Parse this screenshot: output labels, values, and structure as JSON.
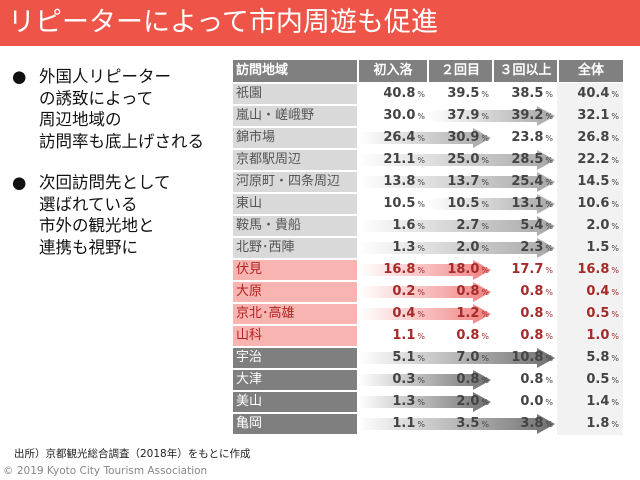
{
  "title": "リピーターによって市内周遊も促進",
  "bullets": [
    {
      "symbol": "●",
      "text": "外国人リピーター\nの誘致によって\n周辺地域の\n訪問率も底上げされる"
    },
    {
      "symbol": "●",
      "text": "次回訪問先として\n選ばれている\n市外の観光地と\n連携も視野に"
    }
  ],
  "table": {
    "headers": [
      "訪問地域",
      "初入洛",
      "２回目",
      "３回以上",
      "全体"
    ],
    "unit": "%",
    "rows": [
      {
        "name": "祇園",
        "style": "g",
        "values": [
          "40.8",
          "39.5",
          "38.5",
          "40.4"
        ],
        "arrow": null
      },
      {
        "name": "嵐山・嵯峨野",
        "style": "g",
        "values": [
          "30.0",
          "37.9",
          "39.2",
          "32.1"
        ],
        "arrow": [
          1,
          2
        ]
      },
      {
        "name": "錦市場",
        "style": "g",
        "values": [
          "26.4",
          "30.9",
          "23.8",
          "26.8"
        ],
        "arrow": [
          0,
          1
        ]
      },
      {
        "name": "京都駅周辺",
        "style": "g",
        "values": [
          "21.1",
          "25.0",
          "28.5",
          "22.2"
        ],
        "arrow": [
          0,
          2
        ]
      },
      {
        "name": "河原町・四条周辺",
        "style": "g",
        "values": [
          "13.8",
          "13.7",
          "25.4",
          "14.5"
        ],
        "arrow": [
          0,
          2
        ]
      },
      {
        "name": "東山",
        "style": "g",
        "values": [
          "10.5",
          "10.5",
          "13.1",
          "10.6"
        ],
        "arrow": [
          1,
          2
        ]
      },
      {
        "name": "鞍馬・貴船",
        "style": "g",
        "values": [
          "1.6",
          "2.7",
          "5.4",
          "2.0"
        ],
        "arrow": [
          0,
          2
        ]
      },
      {
        "name": "北野･西陣",
        "style": "g",
        "values": [
          "1.3",
          "2.0",
          "2.3",
          "1.5"
        ],
        "arrow": [
          0,
          2
        ]
      },
      {
        "name": "伏見",
        "style": "r",
        "values": [
          "16.8",
          "18.0",
          "17.7",
          "16.8"
        ],
        "arrow": [
          0,
          1
        ]
      },
      {
        "name": "大原",
        "style": "r",
        "values": [
          "0.2",
          "0.8",
          "0.8",
          "0.4"
        ],
        "arrow": [
          0,
          1
        ]
      },
      {
        "name": "京北･高雄",
        "style": "r",
        "values": [
          "0.4",
          "1.2",
          "0.8",
          "0.5"
        ],
        "arrow": [
          0,
          1
        ]
      },
      {
        "name": "山科",
        "style": "r",
        "values": [
          "1.1",
          "0.8",
          "0.8",
          "1.0"
        ],
        "arrow": null
      },
      {
        "name": "宇治",
        "style": "d",
        "values": [
          "5.1",
          "7.0",
          "10.8",
          "5.8"
        ],
        "arrow": [
          0,
          2
        ]
      },
      {
        "name": "大津",
        "style": "d",
        "values": [
          "0.3",
          "0.8",
          "0.8",
          "0.5"
        ],
        "arrow": [
          0,
          1
        ]
      },
      {
        "name": "美山",
        "style": "d",
        "values": [
          "1.3",
          "2.0",
          "0.0",
          "1.4"
        ],
        "arrow": [
          0,
          1
        ]
      },
      {
        "name": "亀岡",
        "style": "d",
        "values": [
          "1.1",
          "3.5",
          "3.8",
          "1.8"
        ],
        "arrow": [
          0,
          2
        ]
      }
    ]
  },
  "source": "出所）京都観光総合調査（2018年）をもとに作成",
  "copyright": "© 2019 Kyoto City Tourism Association"
}
